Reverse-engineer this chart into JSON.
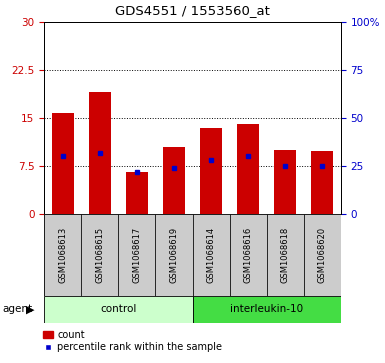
{
  "title": "GDS4551 / 1553560_at",
  "samples": [
    "GSM1068613",
    "GSM1068615",
    "GSM1068617",
    "GSM1068619",
    "GSM1068614",
    "GSM1068616",
    "GSM1068618",
    "GSM1068620"
  ],
  "counts": [
    15.8,
    19.0,
    6.5,
    10.5,
    13.5,
    14.0,
    10.0,
    9.8
  ],
  "percentile_ranks_right": [
    30.0,
    32.0,
    22.0,
    24.0,
    28.0,
    30.0,
    25.0,
    25.0
  ],
  "bar_color": "#cc0000",
  "percentile_color": "#0000cc",
  "left_ylim": [
    0,
    30
  ],
  "right_ylim": [
    0,
    100
  ],
  "left_yticks": [
    0,
    7.5,
    15,
    22.5,
    30
  ],
  "right_yticks": [
    0,
    25,
    50,
    75,
    100
  ],
  "right_yticklabels": [
    "0",
    "25",
    "50",
    "75",
    "100%"
  ],
  "groups": [
    {
      "label": "control",
      "start": 0,
      "end": 4,
      "color": "#ccffcc"
    },
    {
      "label": "interleukin-10",
      "start": 4,
      "end": 8,
      "color": "#44dd44"
    }
  ],
  "agent_label": "agent",
  "legend_count_label": "count",
  "legend_percentile_label": "percentile rank within the sample",
  "bar_width": 0.6,
  "sample_bg_color": "#cccccc",
  "figwidth": 3.85,
  "figheight": 3.63,
  "dpi": 100
}
